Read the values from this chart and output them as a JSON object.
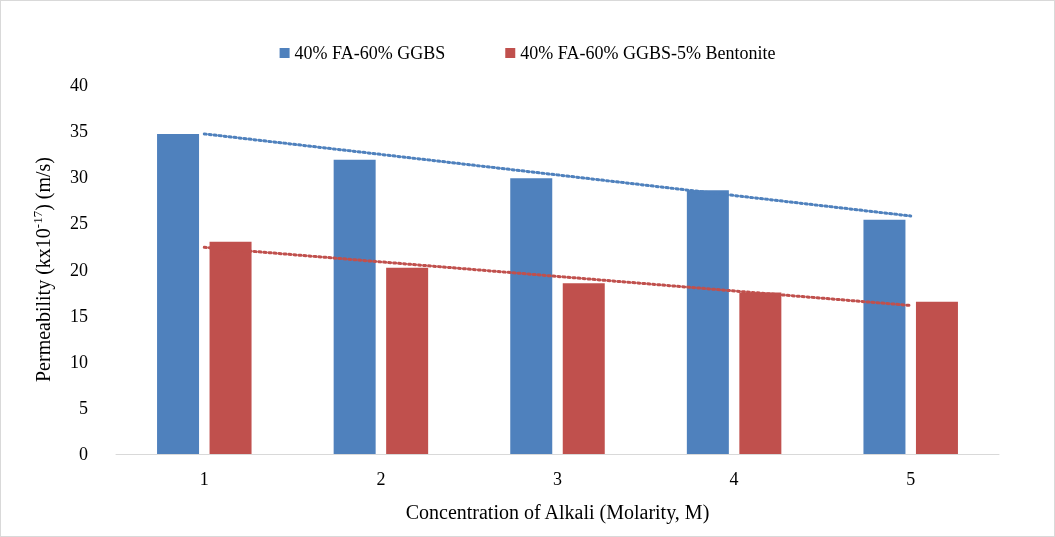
{
  "chart_data": {
    "type": "bar",
    "xlabel": "Concentration of Alkali (Molarity, M)",
    "ylabel": "Permeability (kx10$^{-17}$) (m/s)",
    "categories": [
      "1",
      "2",
      "3",
      "4",
      "5"
    ],
    "series": [
      {
        "name": "40% FA-60% GGBS",
        "color": "#4f81bd",
        "values": [
          34.7,
          31.9,
          29.9,
          28.6,
          25.4
        ]
      },
      {
        "name": "40% FA-60% GGBS-5% Bentonite",
        "color": "#c0504d",
        "values": [
          23.0,
          20.2,
          18.5,
          17.5,
          16.5
        ]
      },
      {
        "type": "line",
        "color": "#4f81bd",
        "x": [
          "1",
          "5"
        ],
        "values": [
          34.7,
          25.8
        ],
        "line_style": "dotted"
      },
      {
        "type": "line",
        "color": "#c0504d",
        "x": [
          "1",
          "5"
        ],
        "values": [
          22.4,
          16.1
        ],
        "line_style": "dotted"
      }
    ],
    "ylim": [
      0,
      40
    ],
    "yticks": [
      0,
      5,
      10,
      15,
      20,
      25,
      30,
      35,
      40
    ],
    "grid": false,
    "legend": "top"
  }
}
